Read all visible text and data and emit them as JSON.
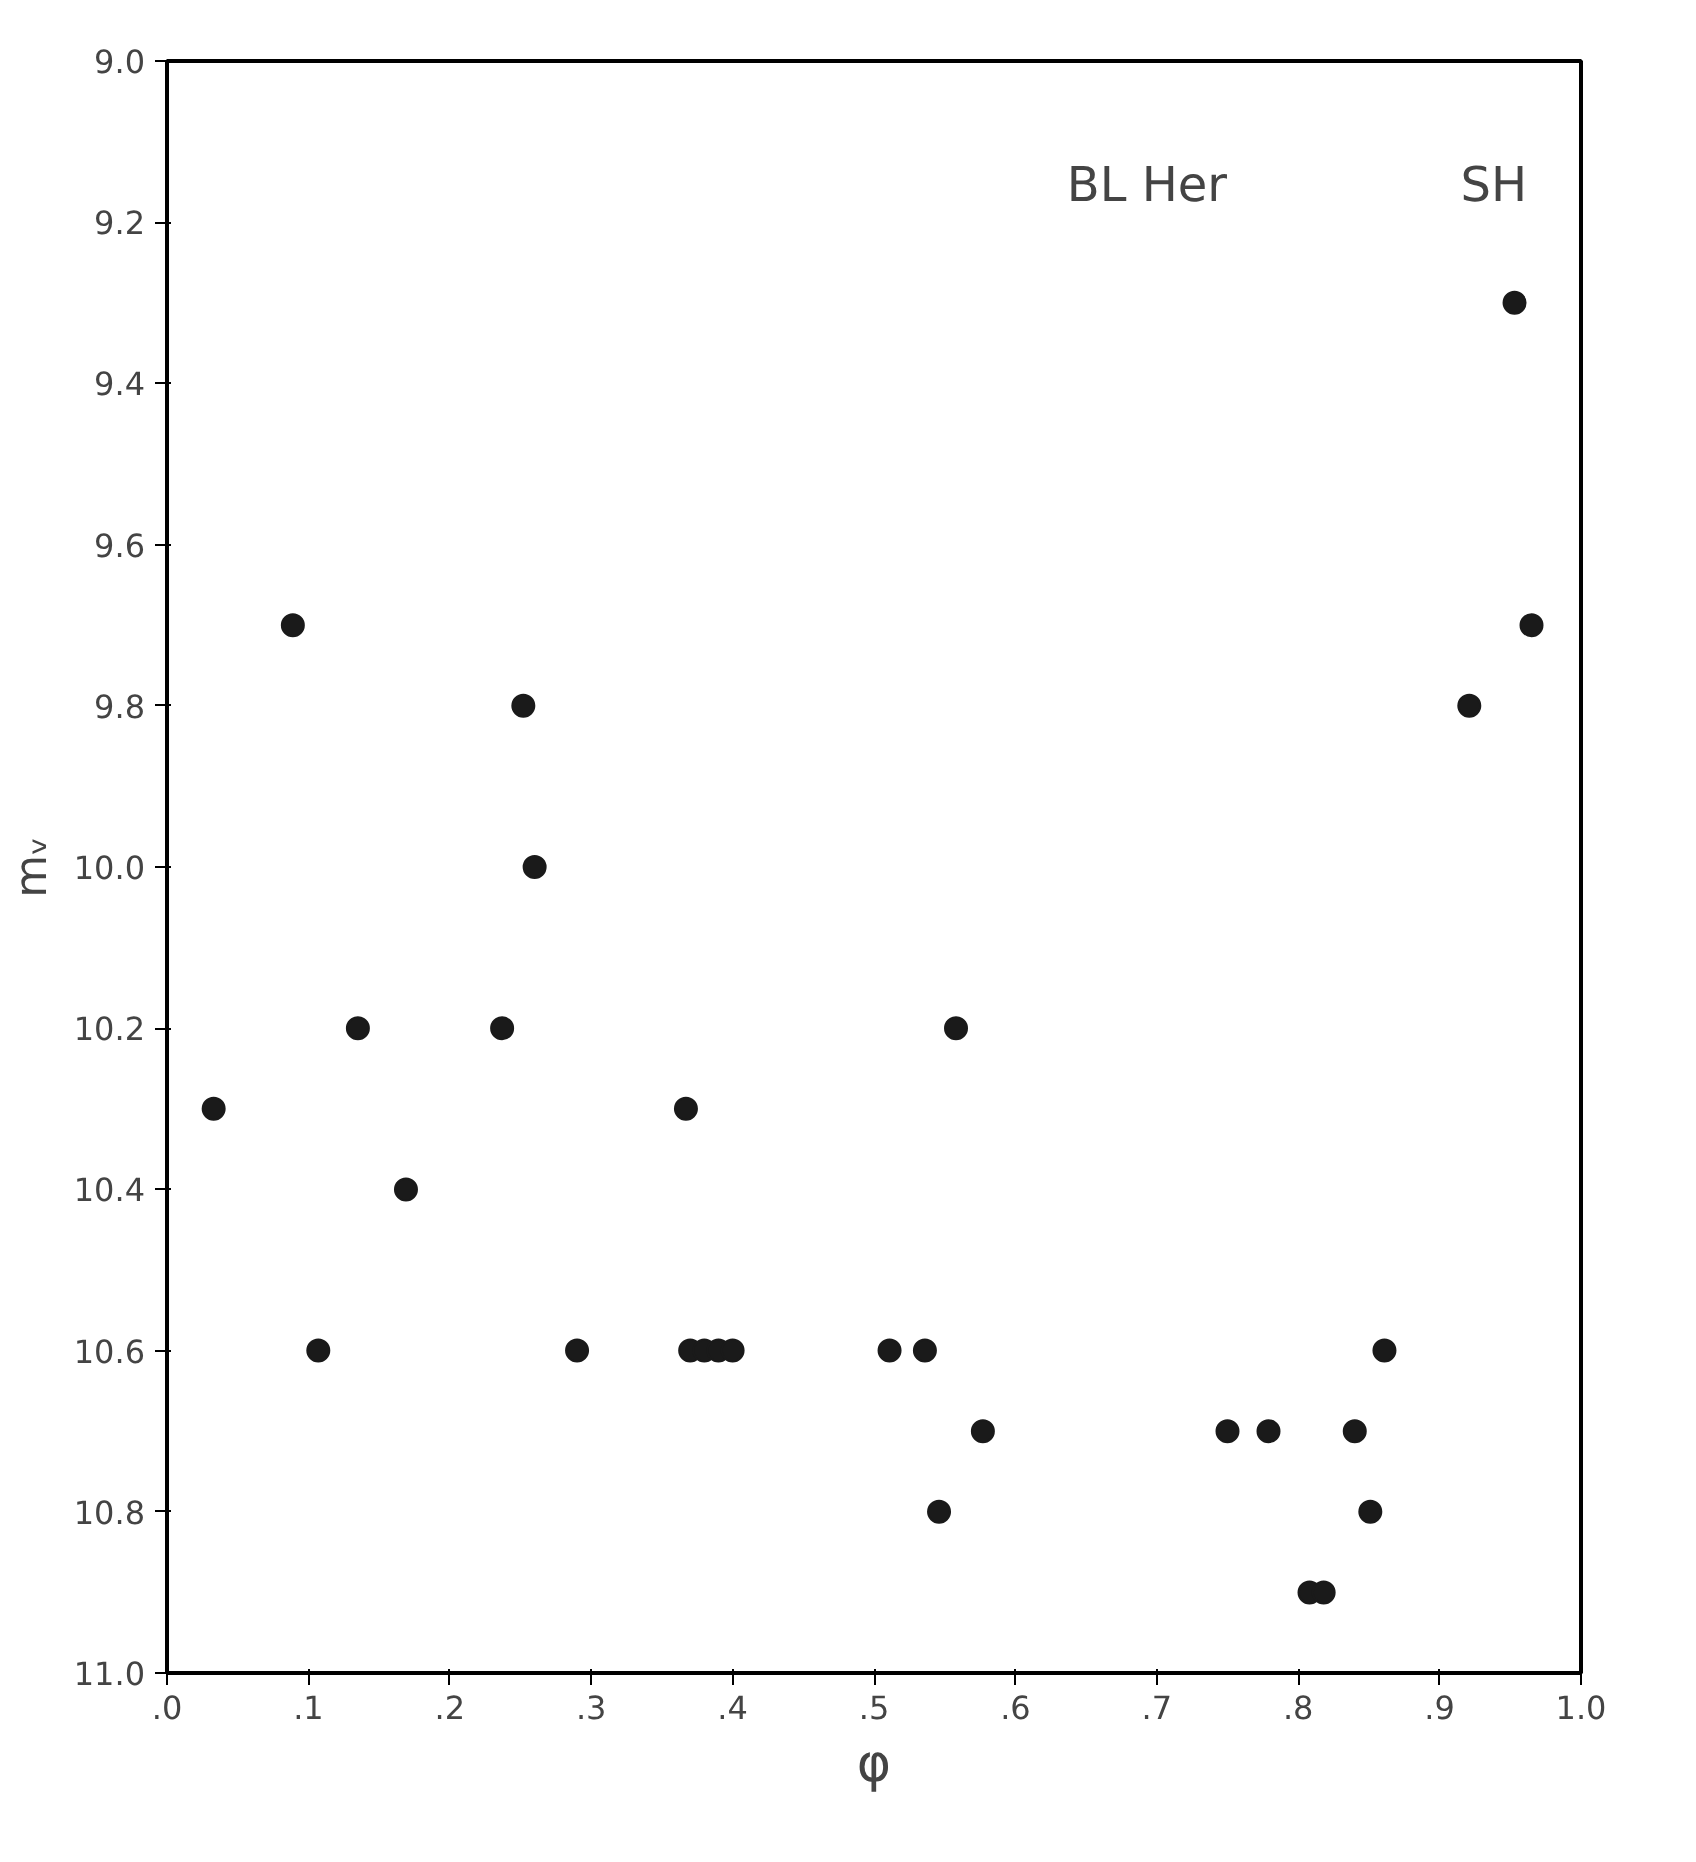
{
  "chart_data": {
    "type": "scatter",
    "xlabel": "φ",
    "ylabel": "mᵥ",
    "annotations": [
      "BL Her",
      "SH"
    ],
    "x": [
      0.033,
      0.089,
      0.107,
      0.135,
      0.169,
      0.237,
      0.252,
      0.26,
      0.29,
      0.367,
      0.37,
      0.38,
      0.39,
      0.4,
      0.511,
      0.536,
      0.546,
      0.558,
      0.577,
      0.75,
      0.779,
      0.808,
      0.818,
      0.84,
      0.851,
      0.861,
      0.921,
      0.953,
      0.965
    ],
    "values": [
      10.3,
      9.7,
      10.6,
      10.2,
      10.4,
      10.2,
      9.8,
      10.0,
      10.6,
      10.3,
      10.6,
      10.6,
      10.6,
      10.6,
      10.6,
      10.6,
      10.8,
      10.2,
      10.7,
      10.7,
      10.7,
      10.9,
      10.9,
      10.7,
      10.8,
      10.6,
      9.8,
      9.3,
      9.7
    ],
    "color": "#1a1a1a",
    "marker": "circle",
    "grid": false,
    "xlim": [
      0,
      1.0
    ],
    "ylim": [
      11.0,
      9.0
    ],
    "xticks": [
      {
        "value": 0,
        "label": ".0"
      },
      {
        "value": 0.1,
        "label": ".1"
      },
      {
        "value": 0.2,
        "label": ".2"
      },
      {
        "value": 0.3,
        "label": ".3"
      },
      {
        "value": 0.4,
        "label": ".4"
      },
      {
        "value": 0.5,
        "label": ".5"
      },
      {
        "value": 0.6,
        "label": ".6"
      },
      {
        "value": 0.7,
        "label": ".7"
      },
      {
        "value": 0.8,
        "label": ".8"
      },
      {
        "value": 0.9,
        "label": ".9"
      },
      {
        "value": 1.0,
        "label": "1.0"
      }
    ],
    "yticks": [
      {
        "value": 9,
        "label": "9.0"
      },
      9.2,
      9.4,
      9.6,
      9.8,
      {
        "value": 10,
        "label": "10.0"
      },
      10.2,
      10.4,
      10.6,
      10.8,
      {
        "value": 11,
        "label": "11.0"
      }
    ]
  }
}
